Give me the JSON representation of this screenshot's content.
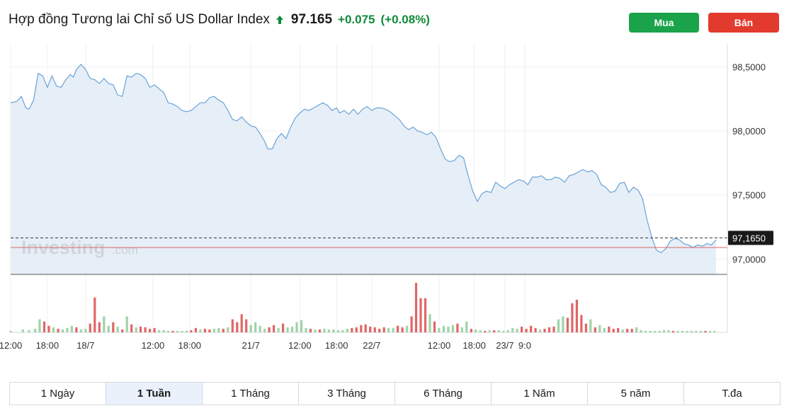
{
  "header": {
    "title": "Hợp đồng Tương lai Chỉ số US Dollar Index",
    "price": "97.165",
    "change": "+0.075",
    "change_pct": "(+0.08%)",
    "direction_icon": "arrow-up-icon",
    "up_color": "#118a3a"
  },
  "actions": {
    "buy_label": "Mua",
    "buy_color": "#1aa34a",
    "sell_label": "Bán",
    "sell_color": "#e23b2e"
  },
  "watermark": {
    "brand": "Investing",
    "suffix": ".com"
  },
  "chart_data": {
    "type": "area",
    "y_ticks": [
      "98,5000",
      "98,0000",
      "97,5000",
      "97,0000"
    ],
    "y_tick_values": [
      98.5,
      98.0,
      97.5,
      97.0
    ],
    "ylim": [
      96.88,
      98.68
    ],
    "x_ticks": [
      "12:00",
      "18:00",
      "18/7",
      "12:00",
      "18:00",
      "21/7",
      "12:00",
      "18:00",
      "22/7",
      "12:00",
      "18:00",
      "23/7",
      "9:0"
    ],
    "x_tick_indices": [
      0,
      24,
      49,
      93,
      117,
      157,
      189,
      213,
      236,
      280,
      303,
      323,
      336
    ],
    "current_label": "97,1650",
    "current_value": 97.165,
    "reference_value": 97.09,
    "line_color": "#6aa3d8",
    "fill_color": "#e6eef7",
    "up_volume_color": "#9fd3a9",
    "down_volume_color": "#e06666",
    "price_points": [
      [
        0,
        98.22
      ],
      [
        4,
        98.23
      ],
      [
        7,
        98.27
      ],
      [
        10,
        98.18
      ],
      [
        12,
        98.17
      ],
      [
        15,
        98.24
      ],
      [
        18,
        98.45
      ],
      [
        21,
        98.43
      ],
      [
        24,
        98.34
      ],
      [
        27,
        98.43
      ],
      [
        30,
        98.35
      ],
      [
        33,
        98.34
      ],
      [
        36,
        98.4
      ],
      [
        39,
        98.44
      ],
      [
        41,
        98.42
      ],
      [
        43,
        98.48
      ],
      [
        46,
        98.52
      ],
      [
        49,
        98.48
      ],
      [
        52,
        98.41
      ],
      [
        55,
        98.4
      ],
      [
        58,
        98.37
      ],
      [
        61,
        98.41
      ],
      [
        64,
        98.37
      ],
      [
        67,
        98.36
      ],
      [
        70,
        98.28
      ],
      [
        73,
        98.27
      ],
      [
        76,
        98.43
      ],
      [
        79,
        98.42
      ],
      [
        82,
        98.45
      ],
      [
        85,
        98.44
      ],
      [
        88,
        98.41
      ],
      [
        91,
        98.34
      ],
      [
        94,
        98.36
      ],
      [
        97,
        98.33
      ],
      [
        100,
        98.3
      ],
      [
        103,
        98.22
      ],
      [
        106,
        98.21
      ],
      [
        109,
        98.19
      ],
      [
        112,
        98.16
      ],
      [
        115,
        98.15
      ],
      [
        118,
        98.16
      ],
      [
        121,
        98.19
      ],
      [
        124,
        98.22
      ],
      [
        127,
        98.22
      ],
      [
        130,
        98.26
      ],
      [
        133,
        98.27
      ],
      [
        136,
        98.24
      ],
      [
        139,
        98.22
      ],
      [
        142,
        98.16
      ],
      [
        145,
        98.09
      ],
      [
        148,
        98.08
      ],
      [
        151,
        98.11
      ],
      [
        154,
        98.07
      ],
      [
        157,
        98.04
      ],
      [
        160,
        98.03
      ],
      [
        163,
        97.98
      ],
      [
        166,
        97.92
      ],
      [
        168,
        97.86
      ],
      [
        171,
        97.86
      ],
      [
        174,
        97.94
      ],
      [
        177,
        97.98
      ],
      [
        180,
        97.94
      ],
      [
        183,
        98.03
      ],
      [
        186,
        98.1
      ],
      [
        189,
        98.14
      ],
      [
        192,
        98.17
      ],
      [
        195,
        98.16
      ],
      [
        198,
        98.18
      ],
      [
        201,
        98.2
      ],
      [
        204,
        98.22
      ],
      [
        207,
        98.2
      ],
      [
        210,
        98.16
      ],
      [
        213,
        98.18
      ],
      [
        215,
        98.14
      ],
      [
        218,
        98.16
      ],
      [
        221,
        98.13
      ],
      [
        224,
        98.17
      ],
      [
        227,
        98.13
      ],
      [
        230,
        98.17
      ],
      [
        233,
        98.19
      ],
      [
        236,
        98.16
      ],
      [
        239,
        98.18
      ],
      [
        242,
        98.18
      ],
      [
        245,
        98.17
      ],
      [
        248,
        98.15
      ],
      [
        251,
        98.12
      ],
      [
        254,
        98.09
      ],
      [
        257,
        98.04
      ],
      [
        260,
        98.01
      ],
      [
        263,
        98.03
      ],
      [
        266,
        98.0
      ],
      [
        269,
        97.99
      ],
      [
        272,
        97.97
      ],
      [
        275,
        97.99
      ],
      [
        278,
        97.95
      ],
      [
        281,
        97.86
      ],
      [
        284,
        97.78
      ],
      [
        287,
        97.76
      ],
      [
        290,
        97.77
      ],
      [
        293,
        97.81
      ],
      [
        296,
        97.79
      ],
      [
        299,
        97.65
      ],
      [
        302,
        97.53
      ],
      [
        305,
        97.45
      ],
      [
        308,
        97.51
      ],
      [
        311,
        97.53
      ],
      [
        314,
        97.52
      ],
      [
        317,
        97.6
      ],
      [
        320,
        97.57
      ],
      [
        323,
        97.55
      ],
      [
        326,
        97.58
      ],
      [
        329,
        97.6
      ],
      [
        332,
        97.62
      ],
      [
        335,
        97.61
      ],
      [
        338,
        97.58
      ],
      [
        341,
        97.64
      ],
      [
        344,
        97.64
      ],
      [
        347,
        97.65
      ],
      [
        350,
        97.62
      ],
      [
        353,
        97.62
      ],
      [
        356,
        97.64
      ],
      [
        359,
        97.63
      ],
      [
        362,
        97.6
      ],
      [
        365,
        97.65
      ],
      [
        368,
        97.66
      ],
      [
        371,
        97.68
      ],
      [
        374,
        97.7
      ],
      [
        377,
        97.68
      ],
      [
        380,
        97.69
      ],
      [
        383,
        97.66
      ],
      [
        386,
        97.58
      ],
      [
        389,
        97.56
      ],
      [
        392,
        97.52
      ],
      [
        395,
        97.53
      ],
      [
        398,
        97.59
      ],
      [
        401,
        97.6
      ],
      [
        404,
        97.52
      ],
      [
        407,
        97.56
      ],
      [
        410,
        97.54
      ],
      [
        413,
        97.47
      ],
      [
        416,
        97.3
      ],
      [
        419,
        97.17
      ],
      [
        422,
        97.07
      ],
      [
        425,
        97.05
      ],
      [
        428,
        97.08
      ],
      [
        431,
        97.14
      ],
      [
        434,
        97.16
      ],
      [
        437,
        97.15
      ],
      [
        440,
        97.12
      ],
      [
        443,
        97.11
      ],
      [
        446,
        97.09
      ],
      [
        449,
        97.11
      ],
      [
        452,
        97.1
      ],
      [
        455,
        97.12
      ],
      [
        458,
        97.11
      ],
      [
        461,
        97.15
      ]
    ],
    "volume_points": [
      [
        0,
        2,
        "up"
      ],
      [
        8,
        4,
        "up"
      ],
      [
        12,
        3,
        "up"
      ],
      [
        16,
        5,
        "up"
      ],
      [
        19,
        18,
        "up"
      ],
      [
        22,
        15,
        "down"
      ],
      [
        25,
        9,
        "down"
      ],
      [
        28,
        7,
        "up"
      ],
      [
        31,
        5,
        "down"
      ],
      [
        34,
        4,
        "up"
      ],
      [
        37,
        6,
        "up"
      ],
      [
        40,
        9,
        "up"
      ],
      [
        43,
        7,
        "down"
      ],
      [
        46,
        4,
        "up"
      ],
      [
        49,
        5,
        "up"
      ],
      [
        52,
        12,
        "down"
      ],
      [
        55,
        48,
        "down"
      ],
      [
        58,
        14,
        "down"
      ],
      [
        61,
        22,
        "up"
      ],
      [
        64,
        9,
        "up"
      ],
      [
        67,
        14,
        "down"
      ],
      [
        70,
        8,
        "up"
      ],
      [
        73,
        4,
        "down"
      ],
      [
        76,
        22,
        "up"
      ],
      [
        79,
        11,
        "down"
      ],
      [
        82,
        7,
        "up"
      ],
      [
        85,
        8,
        "down"
      ],
      [
        88,
        7,
        "down"
      ],
      [
        91,
        5,
        "down"
      ],
      [
        94,
        6,
        "down"
      ],
      [
        97,
        3,
        "up"
      ],
      [
        100,
        3,
        "up"
      ],
      [
        103,
        2,
        "up"
      ],
      [
        106,
        2,
        "down"
      ],
      [
        109,
        2,
        "up"
      ],
      [
        112,
        2,
        "up"
      ],
      [
        115,
        2,
        "up"
      ],
      [
        118,
        3,
        "down"
      ],
      [
        121,
        6,
        "down"
      ],
      [
        124,
        4,
        "up"
      ],
      [
        127,
        5,
        "down"
      ],
      [
        130,
        4,
        "down"
      ],
      [
        133,
        5,
        "up"
      ],
      [
        136,
        6,
        "up"
      ],
      [
        139,
        5,
        "down"
      ],
      [
        142,
        7,
        "up"
      ],
      [
        145,
        18,
        "down"
      ],
      [
        148,
        14,
        "down"
      ],
      [
        151,
        25,
        "down"
      ],
      [
        154,
        18,
        "down"
      ],
      [
        157,
        10,
        "up"
      ],
      [
        160,
        14,
        "up"
      ],
      [
        163,
        9,
        "up"
      ],
      [
        166,
        5,
        "up"
      ],
      [
        169,
        7,
        "down"
      ],
      [
        172,
        10,
        "down"
      ],
      [
        175,
        6,
        "up"
      ],
      [
        178,
        12,
        "down"
      ],
      [
        181,
        7,
        "up"
      ],
      [
        184,
        8,
        "up"
      ],
      [
        187,
        14,
        "up"
      ],
      [
        190,
        17,
        "up"
      ],
      [
        193,
        6,
        "up"
      ],
      [
        196,
        5,
        "down"
      ],
      [
        199,
        4,
        "up"
      ],
      [
        202,
        4,
        "down"
      ],
      [
        205,
        5,
        "up"
      ],
      [
        208,
        4,
        "up"
      ],
      [
        211,
        4,
        "up"
      ],
      [
        214,
        3,
        "up"
      ],
      [
        217,
        3,
        "up"
      ],
      [
        220,
        5,
        "up"
      ],
      [
        223,
        6,
        "down"
      ],
      [
        226,
        7,
        "down"
      ],
      [
        229,
        10,
        "down"
      ],
      [
        232,
        11,
        "down"
      ],
      [
        235,
        8,
        "down"
      ],
      [
        238,
        7,
        "down"
      ],
      [
        241,
        5,
        "down"
      ],
      [
        244,
        7,
        "down"
      ],
      [
        247,
        6,
        "up"
      ],
      [
        250,
        6,
        "up"
      ],
      [
        253,
        9,
        "down"
      ],
      [
        256,
        7,
        "down"
      ],
      [
        259,
        9,
        "up"
      ],
      [
        262,
        22,
        "down"
      ],
      [
        265,
        68,
        "down"
      ],
      [
        268,
        47,
        "down"
      ],
      [
        271,
        47,
        "down"
      ],
      [
        274,
        25,
        "up"
      ],
      [
        277,
        15,
        "down"
      ],
      [
        280,
        6,
        "up"
      ],
      [
        283,
        9,
        "up"
      ],
      [
        286,
        8,
        "up"
      ],
      [
        289,
        10,
        "up"
      ],
      [
        292,
        12,
        "down"
      ],
      [
        295,
        7,
        "up"
      ],
      [
        298,
        15,
        "up"
      ],
      [
        301,
        5,
        "down"
      ],
      [
        304,
        4,
        "up"
      ],
      [
        307,
        3,
        "up"
      ],
      [
        310,
        2,
        "down"
      ],
      [
        313,
        3,
        "up"
      ],
      [
        316,
        3,
        "down"
      ],
      [
        319,
        3,
        "up"
      ],
      [
        322,
        2,
        "up"
      ],
      [
        325,
        3,
        "up"
      ],
      [
        328,
        6,
        "up"
      ],
      [
        331,
        5,
        "up"
      ],
      [
        334,
        8,
        "down"
      ],
      [
        337,
        5,
        "down"
      ],
      [
        340,
        9,
        "down"
      ],
      [
        343,
        6,
        "down"
      ],
      [
        346,
        4,
        "up"
      ],
      [
        349,
        5,
        "down"
      ],
      [
        352,
        7,
        "down"
      ],
      [
        355,
        8,
        "down"
      ],
      [
        358,
        18,
        "up"
      ],
      [
        361,
        22,
        "up"
      ],
      [
        364,
        20,
        "down"
      ],
      [
        367,
        40,
        "down"
      ],
      [
        370,
        45,
        "down"
      ],
      [
        373,
        24,
        "down"
      ],
      [
        376,
        12,
        "down"
      ],
      [
        379,
        18,
        "up"
      ],
      [
        382,
        7,
        "down"
      ],
      [
        385,
        10,
        "up"
      ],
      [
        388,
        6,
        "up"
      ],
      [
        391,
        8,
        "down"
      ],
      [
        394,
        5,
        "down"
      ],
      [
        397,
        6,
        "down"
      ],
      [
        400,
        4,
        "up"
      ],
      [
        403,
        5,
        "down"
      ],
      [
        406,
        5,
        "down"
      ],
      [
        409,
        7,
        "up"
      ],
      [
        412,
        3,
        "up"
      ],
      [
        415,
        2,
        "up"
      ],
      [
        418,
        2,
        "up"
      ],
      [
        421,
        2,
        "up"
      ],
      [
        424,
        2,
        "up"
      ],
      [
        427,
        3,
        "up"
      ],
      [
        430,
        3,
        "up"
      ],
      [
        433,
        2,
        "down"
      ],
      [
        436,
        2,
        "up"
      ],
      [
        439,
        2,
        "up"
      ],
      [
        442,
        2,
        "up"
      ],
      [
        445,
        2,
        "up"
      ],
      [
        448,
        2,
        "up"
      ],
      [
        451,
        2,
        "up"
      ],
      [
        454,
        2,
        "down"
      ],
      [
        457,
        2,
        "up"
      ],
      [
        460,
        2,
        "up"
      ]
    ]
  },
  "periods": {
    "active_index": 1,
    "tabs": [
      "1 Ngày",
      "1 Tuần",
      "1 Tháng",
      "3 Tháng",
      "6 Tháng",
      "1 Năm",
      "5 năm",
      "T.đa"
    ]
  }
}
